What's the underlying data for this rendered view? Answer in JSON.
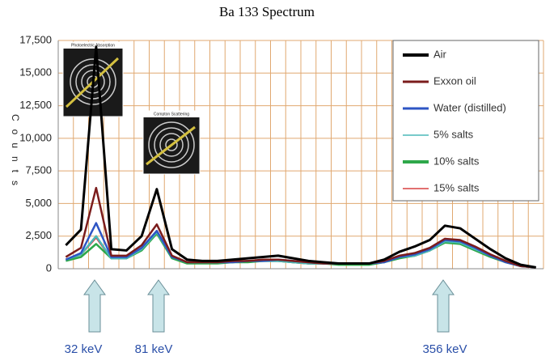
{
  "chart_data": {
    "type": "line",
    "title": "Ba 133 Spectrum",
    "y_label": "Counts",
    "categories": [
      null,
      null,
      null,
      null,
      null,
      null,
      null,
      null,
      null,
      null,
      null,
      null,
      null,
      null,
      null,
      null,
      null,
      null,
      null,
      null,
      null,
      null,
      null,
      null,
      null,
      null,
      null,
      null,
      null,
      null,
      null,
      null
    ],
    "series": [
      {
        "name": "Air",
        "color": "#000000",
        "values": [
          1800,
          3000,
          17000,
          1500,
          1400,
          2500,
          6100,
          1500,
          700,
          600,
          600,
          700,
          800,
          900,
          1000,
          800,
          600,
          500,
          400,
          400,
          400,
          700,
          1300,
          1700,
          2200,
          3300,
          3100,
          2300,
          1500,
          800,
          300,
          100
        ]
      },
      {
        "name": "Exxon oil",
        "color": "#7b1c1c",
        "values": [
          900,
          1600,
          6200,
          1000,
          1000,
          1800,
          3400,
          1000,
          500,
          500,
          500,
          600,
          600,
          700,
          700,
          600,
          500,
          400,
          400,
          400,
          400,
          600,
          1000,
          1200,
          1600,
          2300,
          2200,
          1700,
          1100,
          600,
          200,
          100
        ]
      },
      {
        "name": "Water (distilled)",
        "color": "#2e55c4",
        "values": [
          700,
          1200,
          3500,
          900,
          900,
          1600,
          2900,
          900,
          500,
          500,
          500,
          500,
          600,
          600,
          700,
          600,
          500,
          400,
          400,
          400,
          400,
          500,
          900,
          1100,
          1500,
          2200,
          2100,
          1600,
          1000,
          500,
          200,
          100
        ]
      },
      {
        "name": "5% salts",
        "color": "#4bb8b8",
        "values": [
          700,
          1100,
          2500,
          800,
          800,
          1500,
          2800,
          900,
          500,
          500,
          500,
          500,
          600,
          600,
          600,
          500,
          400,
          400,
          400,
          400,
          400,
          500,
          900,
          1000,
          1400,
          2100,
          2000,
          1500,
          1000,
          500,
          200,
          100
        ]
      },
      {
        "name": "10% salts",
        "color": "#2ea84a",
        "values": [
          600,
          900,
          1900,
          800,
          800,
          1400,
          2700,
          800,
          400,
          400,
          400,
          500,
          500,
          600,
          600,
          500,
          400,
          400,
          300,
          300,
          300,
          500,
          800,
          1000,
          1400,
          2000,
          1900,
          1400,
          900,
          500,
          200,
          100
        ]
      },
      {
        "name": "15% salts",
        "color": "#d94040",
        "values": [
          700,
          1100,
          2400,
          800,
          800,
          1500,
          2900,
          900,
          500,
          500,
          500,
          500,
          600,
          600,
          600,
          500,
          400,
          400,
          400,
          400,
          400,
          500,
          900,
          1000,
          1400,
          2100,
          2000,
          1500,
          1000,
          500,
          200,
          100
        ]
      }
    ],
    "ylim": [
      0,
      17500
    ],
    "yticks": [
      0,
      {
        "value": 2500,
        "label": "2,500"
      },
      {
        "value": 5000,
        "label": "5,000"
      },
      {
        "value": 7500,
        "label": "7,500"
      },
      {
        "value": 10000,
        "label": "10,000"
      },
      {
        "value": 12500,
        "label": "12,500"
      },
      {
        "value": 15000,
        "label": "15,000"
      },
      {
        "value": 17500,
        "label": "17,500"
      }
    ],
    "grid": true,
    "grid_color": "#e0a870",
    "legend": "top-right",
    "annotations": [
      "32 keV",
      "81 keV",
      "356 keV"
    ],
    "insets": [
      "Photoelectric Absorption",
      "Compton Scattering"
    ]
  }
}
